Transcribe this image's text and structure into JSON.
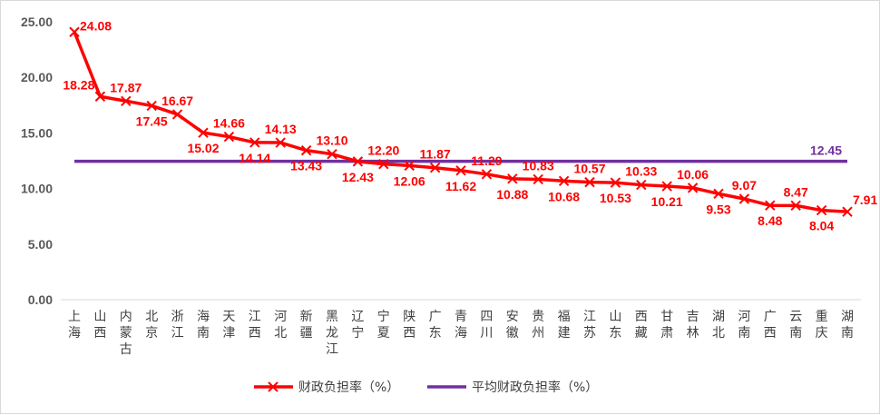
{
  "chart_data": {
    "type": "line",
    "categories": [
      "上海",
      "山西",
      "内蒙古",
      "北京",
      "浙江",
      "海南",
      "天津",
      "江西",
      "河北",
      "新疆",
      "黑龙江",
      "辽宁",
      "宁夏",
      "陕西",
      "广东",
      "青海",
      "四川",
      "安徽",
      "贵州",
      "福建",
      "江苏",
      "山东",
      "西藏",
      "甘肃",
      "吉林",
      "湖北",
      "河南",
      "广西",
      "云南",
      "重庆",
      "湖南"
    ],
    "series": [
      {
        "name": "财政负担率（%）",
        "color": "#ff0000",
        "marker": "x",
        "values": [
          24.08,
          18.28,
          17.87,
          17.45,
          16.67,
          15.02,
          14.66,
          14.14,
          14.13,
          13.43,
          13.1,
          12.43,
          12.2,
          12.06,
          11.87,
          11.62,
          11.29,
          10.88,
          10.83,
          10.68,
          10.57,
          10.53,
          10.33,
          10.21,
          10.06,
          9.53,
          9.07,
          8.48,
          8.47,
          8.04,
          7.91
        ],
        "labels": [
          "24.08",
          "18.28",
          "17.87",
          "17.45",
          "16.67",
          "15.02",
          "14.66",
          "14.14",
          "14.13",
          "13.43",
          "13.10",
          "12.43",
          "12.20",
          "12.06",
          "11.87",
          "11.62",
          "11.29",
          "10.88",
          "10.83",
          "10.68",
          "10.57",
          "10.53",
          "10.33",
          "10.21",
          "10.06",
          "9.53",
          "9.07",
          "8.48",
          "8.47",
          "8.04",
          "7.91"
        ]
      },
      {
        "name": "平均财政负担率（%）",
        "color": "#7030a0",
        "value": 12.45,
        "label": "12.45"
      }
    ],
    "yticks": [
      "0.00",
      "5.00",
      "10.00",
      "15.00",
      "20.00",
      "25.00"
    ],
    "ylim": [
      0,
      25
    ],
    "grid": false,
    "legend_position": "bottom"
  }
}
